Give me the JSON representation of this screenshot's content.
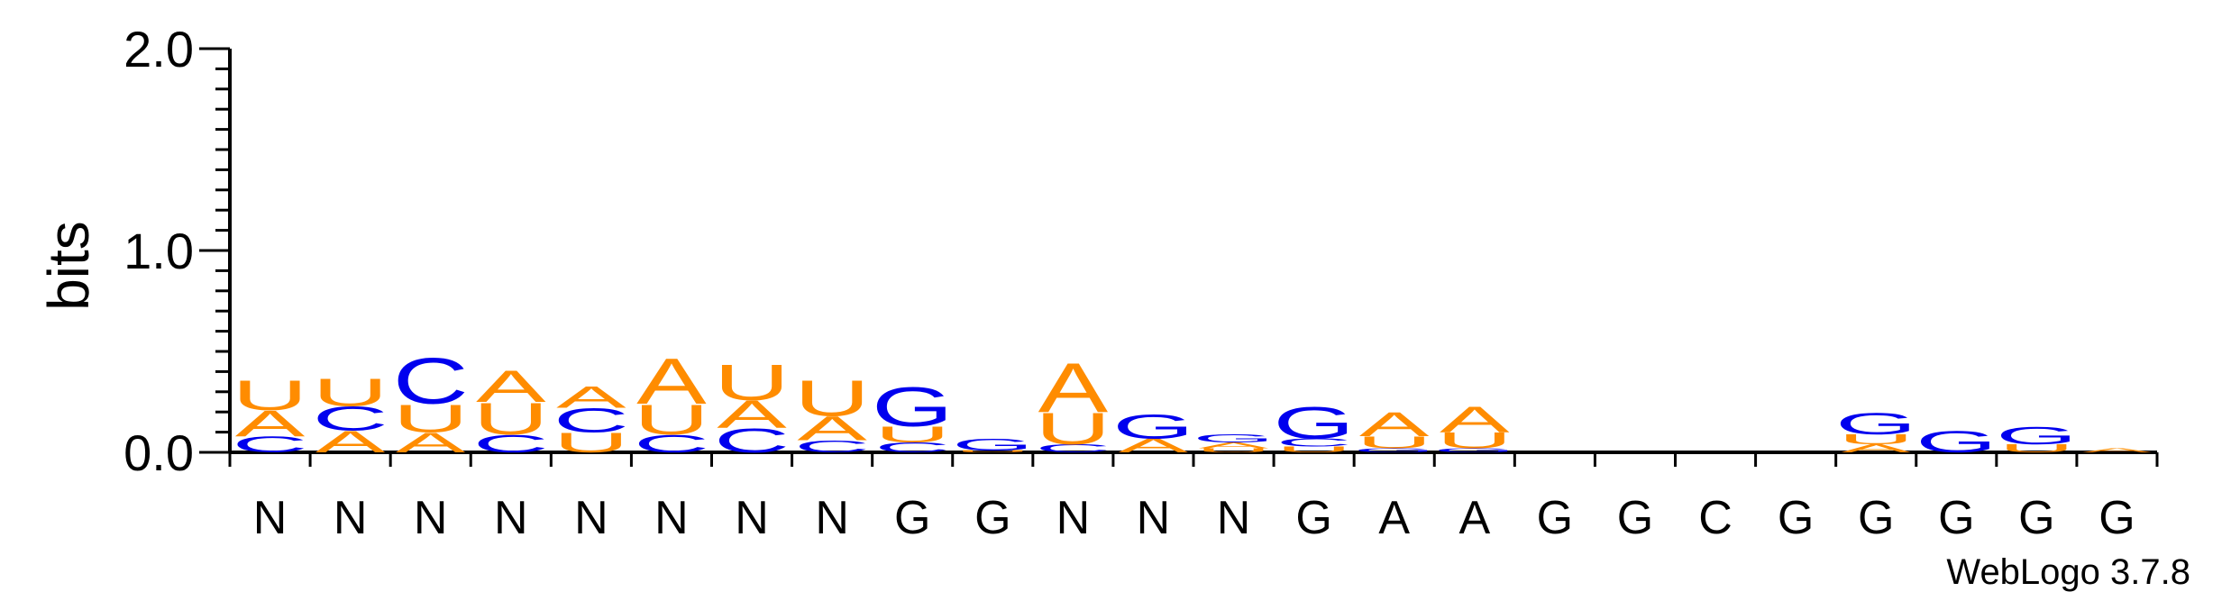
{
  "chart_data": {
    "type": "sequence-logo",
    "ylabel": "bits",
    "ylim": [
      0,
      2.0
    ],
    "yticks": [
      "0.0",
      "1.0",
      "2.0"
    ],
    "footer": "WebLogo 3.7.8",
    "colors": {
      "A": "#ff8c00",
      "U": "#ff8c00",
      "C": "#0000ee",
      "G": "#0000ee"
    },
    "positions": [
      {
        "label": "N",
        "stack": [
          {
            "letter": "C",
            "bits": 0.08
          },
          {
            "letter": "A",
            "bits": 0.13
          },
          {
            "letter": "U",
            "bits": 0.15
          }
        ]
      },
      {
        "label": "N",
        "stack": [
          {
            "letter": "A",
            "bits": 0.11
          },
          {
            "letter": "C",
            "bits": 0.12
          },
          {
            "letter": "U",
            "bits": 0.14
          }
        ]
      },
      {
        "label": "N",
        "stack": [
          {
            "letter": "A",
            "bits": 0.1
          },
          {
            "letter": "U",
            "bits": 0.14
          },
          {
            "letter": "C",
            "bits": 0.23
          }
        ]
      },
      {
        "label": "N",
        "stack": [
          {
            "letter": "C",
            "bits": 0.09
          },
          {
            "letter": "U",
            "bits": 0.16
          },
          {
            "letter": "A",
            "bits": 0.16
          }
        ]
      },
      {
        "label": "N",
        "stack": [
          {
            "letter": "U",
            "bits": 0.1
          },
          {
            "letter": "C",
            "bits": 0.12
          },
          {
            "letter": "A",
            "bits": 0.11
          }
        ]
      },
      {
        "label": "N",
        "stack": [
          {
            "letter": "C",
            "bits": 0.09
          },
          {
            "letter": "U",
            "bits": 0.15
          },
          {
            "letter": "A",
            "bits": 0.23
          }
        ]
      },
      {
        "label": "N",
        "stack": [
          {
            "letter": "C",
            "bits": 0.12
          },
          {
            "letter": "A",
            "bits": 0.14
          },
          {
            "letter": "U",
            "bits": 0.18
          }
        ]
      },
      {
        "label": "N",
        "stack": [
          {
            "letter": "C",
            "bits": 0.06
          },
          {
            "letter": "A",
            "bits": 0.12
          },
          {
            "letter": "U",
            "bits": 0.18
          }
        ]
      },
      {
        "label": "G",
        "stack": [
          {
            "letter": "C",
            "bits": 0.05
          },
          {
            "letter": "U",
            "bits": 0.08
          },
          {
            "letter": "G",
            "bits": 0.2
          }
        ]
      },
      {
        "label": "G",
        "stack": [
          {
            "letter": "U",
            "bits": 0.01
          },
          {
            "letter": "G",
            "bits": 0.06
          }
        ]
      },
      {
        "label": "N",
        "stack": [
          {
            "letter": "C",
            "bits": 0.04
          },
          {
            "letter": "U",
            "bits": 0.16
          },
          {
            "letter": "A",
            "bits": 0.25
          }
        ]
      },
      {
        "label": "N",
        "stack": [
          {
            "letter": "A",
            "bits": 0.07
          },
          {
            "letter": "G",
            "bits": 0.12
          }
        ]
      },
      {
        "label": "N",
        "stack": [
          {
            "letter": "U",
            "bits": 0.02
          },
          {
            "letter": "A",
            "bits": 0.03
          },
          {
            "letter": "G",
            "bits": 0.04
          }
        ]
      },
      {
        "label": "G",
        "stack": [
          {
            "letter": "U",
            "bits": 0.03
          },
          {
            "letter": "C",
            "bits": 0.04
          },
          {
            "letter": "G",
            "bits": 0.16
          }
        ]
      },
      {
        "label": "A",
        "stack": [
          {
            "letter": "G",
            "bits": 0.02
          },
          {
            "letter": "U",
            "bits": 0.06
          },
          {
            "letter": "A",
            "bits": 0.12
          }
        ]
      },
      {
        "label": "A",
        "stack": [
          {
            "letter": "G",
            "bits": 0.02
          },
          {
            "letter": "U",
            "bits": 0.08
          },
          {
            "letter": "A",
            "bits": 0.13
          }
        ]
      },
      {
        "label": "G",
        "stack": []
      },
      {
        "label": "G",
        "stack": []
      },
      {
        "label": "C",
        "stack": []
      },
      {
        "label": "G",
        "stack": []
      },
      {
        "label": "G",
        "stack": [
          {
            "letter": "A",
            "bits": 0.04
          },
          {
            "letter": "U",
            "bits": 0.05
          },
          {
            "letter": "G",
            "bits": 0.11
          }
        ]
      },
      {
        "label": "G",
        "stack": [
          {
            "letter": "G",
            "bits": 0.11
          }
        ]
      },
      {
        "label": "G",
        "stack": [
          {
            "letter": "U",
            "bits": 0.04
          },
          {
            "letter": "G",
            "bits": 0.09
          }
        ]
      },
      {
        "label": "G",
        "stack": [
          {
            "letter": "A",
            "bits": 0.02
          }
        ]
      }
    ]
  }
}
